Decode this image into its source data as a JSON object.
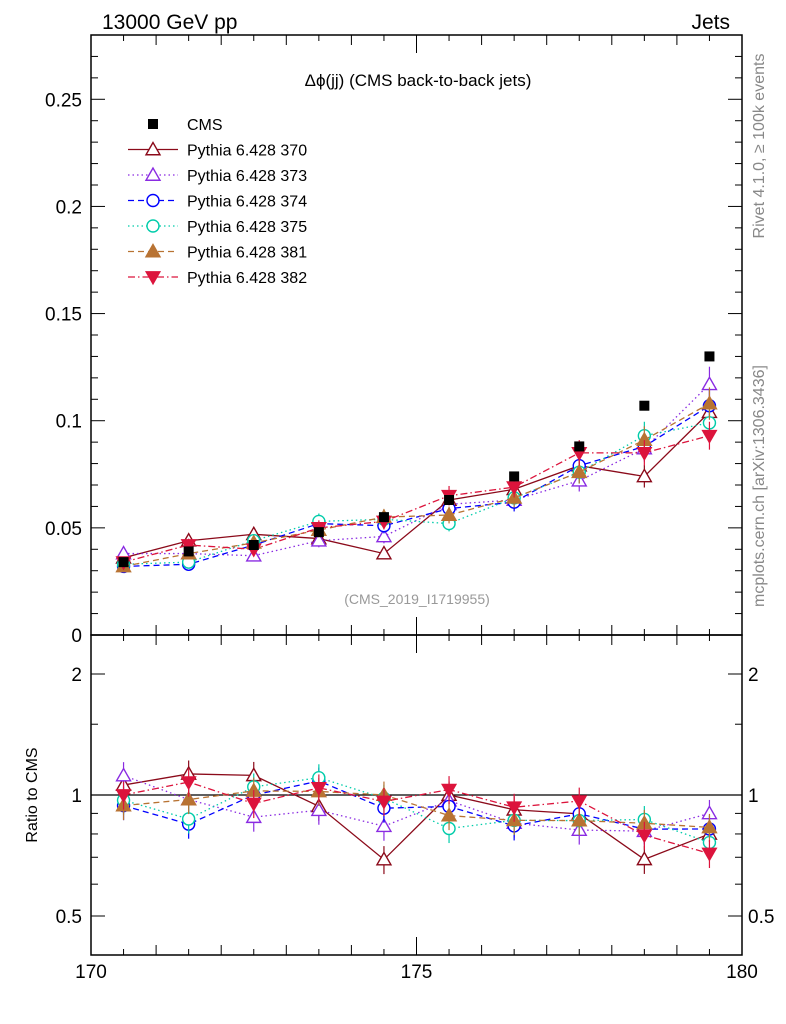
{
  "header": {
    "left": "13000 GeV pp",
    "right": "Jets"
  },
  "side": {
    "rivet": "Rivet 4.1.0, ≥ 100k events",
    "mcplots": "mcplots.cern.ch [arXiv:1306.3436]"
  },
  "chart_data": {
    "type": "scatter",
    "title": "Δϕ(jj) (CMS back-to-back jets)",
    "watermark": "(CMS_2019_I1719955)",
    "xlabel": "",
    "xlim": [
      170,
      180
    ],
    "x_ticks": [
      "170",
      "175",
      "180"
    ],
    "main": {
      "ylabel": "",
      "ylim": [
        0,
        0.28
      ],
      "y_ticks": [
        "0",
        "0.05",
        "0.1",
        "0.15",
        "0.2",
        "0.25"
      ]
    },
    "ratio": {
      "ylabel": "Ratio to CMS",
      "y_ticks": [
        "0.5",
        "1",
        "2"
      ],
      "right_ticks": [
        "0.5",
        "1",
        "2"
      ]
    },
    "x": [
      170.5,
      171.5,
      172.5,
      173.5,
      174.5,
      175.5,
      176.5,
      177.5,
      178.5,
      179.5
    ],
    "data": {
      "name": "CMS",
      "values": [
        0.034,
        0.039,
        0.042,
        0.048,
        0.055,
        0.063,
        0.074,
        0.088,
        0.107,
        0.13
      ]
    },
    "series": [
      {
        "name": "Pythia 6.428 370",
        "color": "#8b0a1a",
        "marker": "triangle-open",
        "dash": "solid",
        "values": [
          0.036,
          0.044,
          0.047,
          0.045,
          0.038,
          0.063,
          0.068,
          0.079,
          0.074,
          0.104
        ]
      },
      {
        "name": "Pythia 6.428 373",
        "color": "#8a2be2",
        "marker": "triangle-open",
        "dash": "dotted",
        "values": [
          0.038,
          0.038,
          0.037,
          0.044,
          0.046,
          0.061,
          0.063,
          0.072,
          0.087,
          0.117
        ]
      },
      {
        "name": "Pythia 6.428 374",
        "color": "#0000ff",
        "marker": "circle-open",
        "dash": "dashed",
        "values": [
          0.032,
          0.033,
          0.042,
          0.052,
          0.051,
          0.059,
          0.062,
          0.079,
          0.088,
          0.107
        ]
      },
      {
        "name": "Pythia 6.428 375",
        "color": "#00ccaa",
        "marker": "circle-open",
        "dash": "dotted",
        "values": [
          0.033,
          0.034,
          0.044,
          0.053,
          0.054,
          0.052,
          0.064,
          0.076,
          0.093,
          0.099
        ]
      },
      {
        "name": "Pythia 6.428 381",
        "color": "#b87333",
        "marker": "triangle-filled",
        "dash": "dashed",
        "values": [
          0.032,
          0.038,
          0.043,
          0.049,
          0.055,
          0.056,
          0.064,
          0.076,
          0.091,
          0.108
        ]
      },
      {
        "name": "Pythia 6.428 382",
        "color": "#dc143c",
        "marker": "triangle-down-filled",
        "dash": "dashdot",
        "values": [
          0.034,
          0.042,
          0.04,
          0.05,
          0.053,
          0.065,
          0.069,
          0.085,
          0.085,
          0.093
        ]
      }
    ]
  }
}
